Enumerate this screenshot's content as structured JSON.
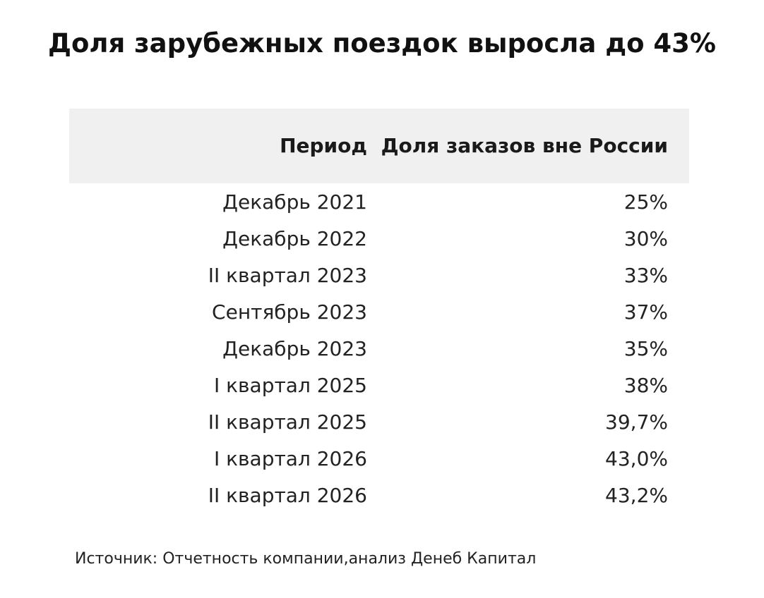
{
  "title": "Доля зарубежных поездок выросла до 43%",
  "source": "Источник: Отчетность компании,анализ Денеб Капитал",
  "chart_data": {
    "type": "table",
    "title": "Доля зарубежных поездок выросла до 43%",
    "columns": [
      "Период",
      "Доля заказов вне России"
    ],
    "rows": [
      [
        "Декабрь 2021",
        "25%"
      ],
      [
        "Декабрь 2022",
        "30%"
      ],
      [
        "II квартал 2023",
        "33%"
      ],
      [
        "Сентябрь 2023",
        "37%"
      ],
      [
        "Декабрь 2023",
        "35%"
      ],
      [
        "I квартал 2025",
        "38%"
      ],
      [
        "II квартал 2025",
        "39,7%"
      ],
      [
        "I квартал 2026",
        "43,0%"
      ],
      [
        "II квартал 2026",
        "43,2%"
      ]
    ]
  },
  "colors": {
    "header_background": "#f0f0f0",
    "text": "#1a1a1a"
  }
}
